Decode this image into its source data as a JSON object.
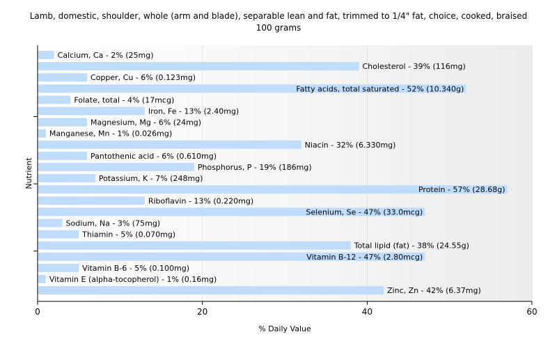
{
  "chart_data": {
    "type": "bar",
    "orientation": "horizontal",
    "title": "Lamb, domestic, shoulder, whole (arm and blade), separable lean and fat, trimmed to 1/4\" fat, choice, cooked, braised",
    "subtitle": "100 grams",
    "xlabel": "% Daily Value",
    "ylabel": "Nutrient",
    "xlim": [
      0,
      60
    ],
    "xticks": [
      0,
      20,
      40,
      60
    ],
    "grid": true,
    "bar_color": "#bfdcfb",
    "categories": [
      "Calcium, Ca",
      "Cholesterol",
      "Copper, Cu",
      "Fatty acids, total saturated",
      "Folate, total",
      "Iron, Fe",
      "Magnesium, Mg",
      "Manganese, Mn",
      "Niacin",
      "Pantothenic acid",
      "Phosphorus, P",
      "Potassium, K",
      "Protein",
      "Riboflavin",
      "Selenium, Se",
      "Sodium, Na",
      "Thiamin",
      "Total lipid (fat)",
      "Vitamin B-12",
      "Vitamin B-6",
      "Vitamin E (alpha-tocopherol)",
      "Zinc, Zn"
    ],
    "values": [
      2,
      39,
      6,
      52,
      4,
      13,
      6,
      1,
      32,
      6,
      19,
      7,
      57,
      13,
      47,
      3,
      5,
      38,
      47,
      5,
      1,
      42
    ],
    "labels": [
      "Calcium, Ca - 2% (25mg)",
      "Cholesterol - 39% (116mg)",
      "Copper, Cu - 6% (0.123mg)",
      "Fatty acids, total saturated - 52% (10.340g)",
      "Folate, total - 4% (17mcg)",
      "Iron, Fe - 13% (2.40mg)",
      "Magnesium, Mg - 6% (24mg)",
      "Manganese, Mn - 1% (0.026mg)",
      "Niacin - 32% (6.330mg)",
      "Pantothenic acid - 6% (0.610mg)",
      "Phosphorus, P - 19% (186mg)",
      "Potassium, K - 7% (248mg)",
      "Protein - 57% (28.68g)",
      "Riboflavin - 13% (0.220mg)",
      "Selenium, Se - 47% (33.0mcg)",
      "Sodium, Na - 3% (75mg)",
      "Thiamin - 5% (0.070mg)",
      "Total lipid (fat) - 38% (24.55g)",
      "Vitamin B-12 - 47% (2.80mcg)",
      "Vitamin B-6 - 5% (0.100mg)",
      "Vitamin E (alpha-tocopherol) - 1% (0.16mg)",
      "Zinc, Zn - 42% (6.37mg)"
    ]
  }
}
